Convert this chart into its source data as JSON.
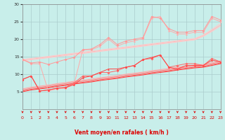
{
  "xlabel": "Vent moyen/en rafales ( km/h )",
  "xlim": [
    0,
    23
  ],
  "ylim": [
    0,
    30
  ],
  "yticks": [
    5,
    10,
    15,
    20,
    25,
    30
  ],
  "xticks": [
    0,
    1,
    2,
    3,
    4,
    5,
    6,
    7,
    8,
    9,
    10,
    11,
    12,
    13,
    14,
    15,
    16,
    17,
    18,
    19,
    20,
    21,
    22,
    23
  ],
  "bg_color": "#c8eeea",
  "grid_color": "#aacccc",
  "hours": [
    0,
    1,
    2,
    3,
    4,
    5,
    6,
    7,
    8,
    9,
    10,
    11,
    12,
    13,
    14,
    15,
    16,
    17,
    18,
    19,
    20,
    21,
    22,
    23
  ],
  "upper_scatter1_color": "#ff9999",
  "upper_scatter1_data": [
    14.2,
    13.2,
    13.5,
    12.8,
    13.5,
    14.2,
    14.8,
    17.0,
    17.2,
    18.5,
    20.5,
    18.5,
    19.5,
    20.0,
    20.5,
    26.5,
    26.0,
    23.0,
    22.0,
    22.0,
    22.5,
    22.5,
    26.5,
    25.5
  ],
  "upper_scatter2_color": "#ffaaaa",
  "upper_scatter2_marker": "^",
  "upper_scatter2_data": [
    14.2,
    13.0,
    13.0,
    5.2,
    5.8,
    6.0,
    7.2,
    17.0,
    17.0,
    18.0,
    20.0,
    18.0,
    19.0,
    19.5,
    20.2,
    26.0,
    26.5,
    22.5,
    21.5,
    21.5,
    22.0,
    22.0,
    26.0,
    25.0
  ],
  "upper_linear1_color": "#ffbbbb",
  "upper_linear1_data": [
    14.0,
    14.3,
    14.6,
    14.9,
    15.2,
    15.5,
    15.8,
    16.1,
    16.4,
    16.7,
    17.0,
    17.3,
    17.6,
    17.9,
    18.2,
    18.5,
    18.8,
    19.1,
    19.4,
    19.7,
    20.0,
    21.0,
    22.5,
    24.0
  ],
  "upper_linear2_color": "#ffcccc",
  "upper_linear2_data": [
    14.2,
    14.5,
    14.8,
    15.1,
    15.4,
    15.7,
    16.0,
    16.3,
    16.6,
    16.9,
    17.2,
    17.5,
    17.8,
    18.1,
    18.4,
    18.7,
    19.0,
    19.3,
    19.6,
    19.9,
    20.2,
    21.2,
    22.8,
    24.5
  ],
  "upper_linear3_color": "#ffcccc",
  "upper_linear3_data": [
    13.8,
    14.1,
    14.4,
    14.7,
    15.0,
    15.3,
    15.6,
    15.9,
    16.2,
    16.5,
    16.8,
    17.1,
    17.4,
    17.7,
    18.0,
    18.3,
    18.6,
    18.9,
    19.2,
    19.5,
    19.8,
    20.8,
    22.2,
    23.8
  ],
  "lower_scatter1_color": "#ff4444",
  "lower_scatter1_data": [
    8.5,
    9.5,
    5.2,
    5.5,
    6.0,
    6.2,
    7.0,
    9.0,
    9.5,
    10.5,
    11.5,
    11.5,
    12.0,
    12.5,
    14.2,
    14.8,
    15.5,
    12.0,
    11.5,
    12.5,
    12.5,
    12.5,
    14.0,
    13.5
  ],
  "lower_scatter2_color": "#ff6666",
  "lower_scatter2_data": [
    8.5,
    9.5,
    5.2,
    5.5,
    6.0,
    6.2,
    7.5,
    9.5,
    9.5,
    10.5,
    10.5,
    11.0,
    12.0,
    12.5,
    14.2,
    14.5,
    15.5,
    12.0,
    12.5,
    13.0,
    13.0,
    12.5,
    14.5,
    13.5
  ],
  "lower_linear1_color": "#ff4444",
  "lower_linear1_data": [
    5.0,
    5.5,
    5.8,
    6.1,
    6.5,
    6.8,
    7.2,
    7.5,
    7.8,
    8.2,
    8.5,
    8.8,
    9.2,
    9.5,
    9.8,
    10.2,
    10.5,
    10.8,
    11.2,
    11.5,
    11.8,
    12.0,
    12.5,
    13.0
  ],
  "lower_linear2_color": "#ff6666",
  "lower_linear2_data": [
    5.2,
    5.7,
    6.0,
    6.3,
    6.7,
    7.0,
    7.4,
    7.7,
    8.0,
    8.4,
    8.7,
    9.0,
    9.4,
    9.7,
    10.0,
    10.4,
    10.7,
    11.0,
    11.4,
    11.7,
    12.0,
    12.2,
    12.7,
    13.2
  ],
  "lower_linear3_color": "#ff8888",
  "lower_linear3_data": [
    5.5,
    6.0,
    6.3,
    6.6,
    7.0,
    7.3,
    7.7,
    8.0,
    8.3,
    8.7,
    9.0,
    9.3,
    9.7,
    10.0,
    10.3,
    10.7,
    11.0,
    11.3,
    11.7,
    12.0,
    12.3,
    12.5,
    13.0,
    13.5
  ],
  "lower_linear4_color": "#ffaaaa",
  "lower_linear4_data": [
    5.8,
    6.3,
    6.6,
    6.9,
    7.3,
    7.6,
    8.0,
    8.3,
    8.6,
    9.0,
    9.3,
    9.6,
    10.0,
    10.3,
    10.6,
    11.0,
    11.3,
    11.6,
    12.0,
    12.3,
    12.6,
    12.8,
    13.3,
    13.8
  ],
  "arrow_color": "#dd0000"
}
